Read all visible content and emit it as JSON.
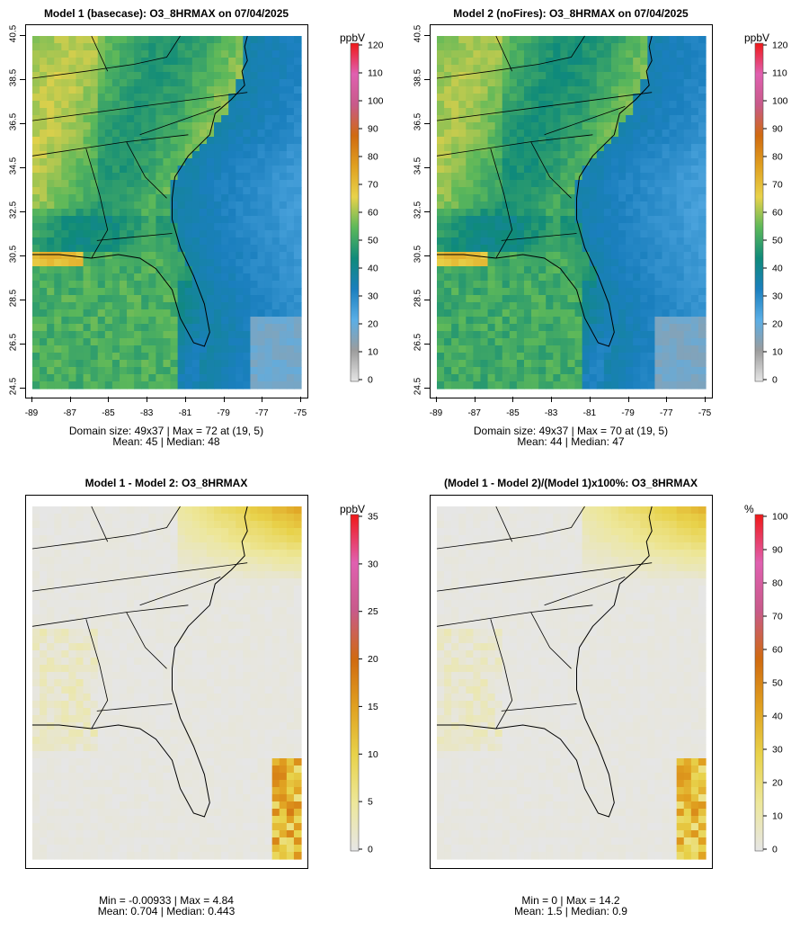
{
  "chart_data": [
    {
      "type": "heatmap",
      "panel": "model1",
      "title": "Model 1 (basecase): O3_8HRMAX on 07/04/2025",
      "unit_label": "ppbV",
      "colorbar_ticks": [
        "0",
        "10",
        "20",
        "30",
        "40",
        "50",
        "60",
        "70",
        "80",
        "90",
        "100",
        "110",
        "120"
      ],
      "colorbar_range": [
        0,
        120
      ],
      "xticks": [
        "-89",
        "-87",
        "-85",
        "-83",
        "-81",
        "-79",
        "-77",
        "-75"
      ],
      "yticks": [
        "24.5",
        "26.5",
        "28.5",
        "30.5",
        "32.5",
        "34.5",
        "36.5",
        "38.5",
        "40.5"
      ],
      "xlim": [
        -89,
        -75
      ],
      "ylim": [
        24.5,
        40.5
      ],
      "stat_line1": "Domain size: 49x37 | Max = 72 at (19, 5)",
      "stat_line2": "Mean: 45 |  Median: 48",
      "max": 72,
      "mean": 45,
      "median": 48
    },
    {
      "type": "heatmap",
      "panel": "model2",
      "title": "Model 2 (noFires): O3_8HRMAX on 07/04/2025",
      "unit_label": "ppbV",
      "colorbar_ticks": [
        "0",
        "10",
        "20",
        "30",
        "40",
        "50",
        "60",
        "70",
        "80",
        "90",
        "100",
        "110",
        "120"
      ],
      "colorbar_range": [
        0,
        120
      ],
      "xticks": [
        "-89",
        "-87",
        "-85",
        "-83",
        "-81",
        "-79",
        "-77",
        "-75"
      ],
      "yticks": [
        "24.5",
        "26.5",
        "28.5",
        "30.5",
        "32.5",
        "34.5",
        "36.5",
        "38.5",
        "40.5"
      ],
      "xlim": [
        -89,
        -75
      ],
      "ylim": [
        24.5,
        40.5
      ],
      "stat_line1": "Domain size: 49x37 | Max = 70 at (19, 5)",
      "stat_line2": "Mean: 44 |  Median: 47",
      "max": 70,
      "mean": 44,
      "median": 47
    },
    {
      "type": "heatmap",
      "panel": "diff",
      "title": "Model 1 - Model 2: O3_8HRMAX",
      "unit_label": "ppbV",
      "colorbar_ticks": [
        "0",
        "5",
        "10",
        "15",
        "20",
        "25",
        "30",
        "35"
      ],
      "colorbar_range": [
        0,
        35
      ],
      "stat_line1": "Min = -0.00933 | Max = 4.84",
      "stat_line2": "Mean: 0.704 |  Median: 0.443",
      "min": -0.00933,
      "max": 4.84,
      "mean": 0.704,
      "median": 0.443
    },
    {
      "type": "heatmap",
      "panel": "pctdiff",
      "title": "(Model 1 - Model 2)/(Model 1)x100%: O3_8HRMAX",
      "unit_label": "%",
      "colorbar_ticks": [
        "0",
        "10",
        "20",
        "30",
        "40",
        "50",
        "60",
        "70",
        "80",
        "90",
        "100"
      ],
      "colorbar_range": [
        0,
        100
      ],
      "stat_line1": "Min = 0 | Max = 14.2",
      "stat_line2": "Mean: 1.5 |  Median: 0.9",
      "min": 0,
      "max": 14.2,
      "mean": 1.5,
      "median": 0.9
    }
  ],
  "colors": {
    "concentration_scale": [
      "#e6e6e6",
      "#9c9c9c",
      "#5aaee6",
      "#1a7fbe",
      "#0f8a7a",
      "#5cb85a",
      "#e8d24a",
      "#e0a020",
      "#d06a10",
      "#c85a8a",
      "#e060b0",
      "#f01818"
    ],
    "difference_scale": [
      "#e6e6e6",
      "#ede79a",
      "#e8d24a",
      "#e0a020",
      "#d06a10",
      "#c85a8a",
      "#e060b0",
      "#f01818"
    ]
  }
}
